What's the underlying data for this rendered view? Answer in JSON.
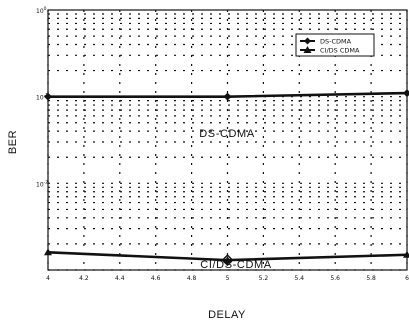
{
  "chart_data": {
    "type": "line",
    "x": [
      4,
      5,
      6
    ],
    "xlim": [
      4,
      6
    ],
    "ylim": [
      0.001,
      1
    ],
    "yscale": "log",
    "xlabel": "DELAY",
    "ylabel": "BER",
    "xticks": [
      "4",
      "4.2",
      "4.4",
      "4.6",
      "4.8",
      "5",
      "5.2",
      "5.4",
      "5.6",
      "5.8",
      "6"
    ],
    "yticks": [
      {
        "base": "10",
        "exp": "0"
      },
      {
        "base": "10",
        "exp": "-1"
      },
      {
        "base": "10",
        "exp": "-2"
      }
    ],
    "grid": true,
    "legend_position": "top-right",
    "legend": [
      "DS-CDMA",
      "CI/DS CDMA"
    ],
    "series": [
      {
        "name": "DS-CDMA",
        "marker": "diamond",
        "values": [
          0.1,
          0.1,
          0.11
        ]
      },
      {
        "name": "CI/DS CDMA",
        "marker": "triangle",
        "values": [
          0.0016,
          0.0013,
          0.0015
        ]
      }
    ],
    "annotations": [
      {
        "text": "DS-CDMA",
        "series": 0
      },
      {
        "text": "CI/DS-CDMA",
        "series": 1
      }
    ]
  }
}
